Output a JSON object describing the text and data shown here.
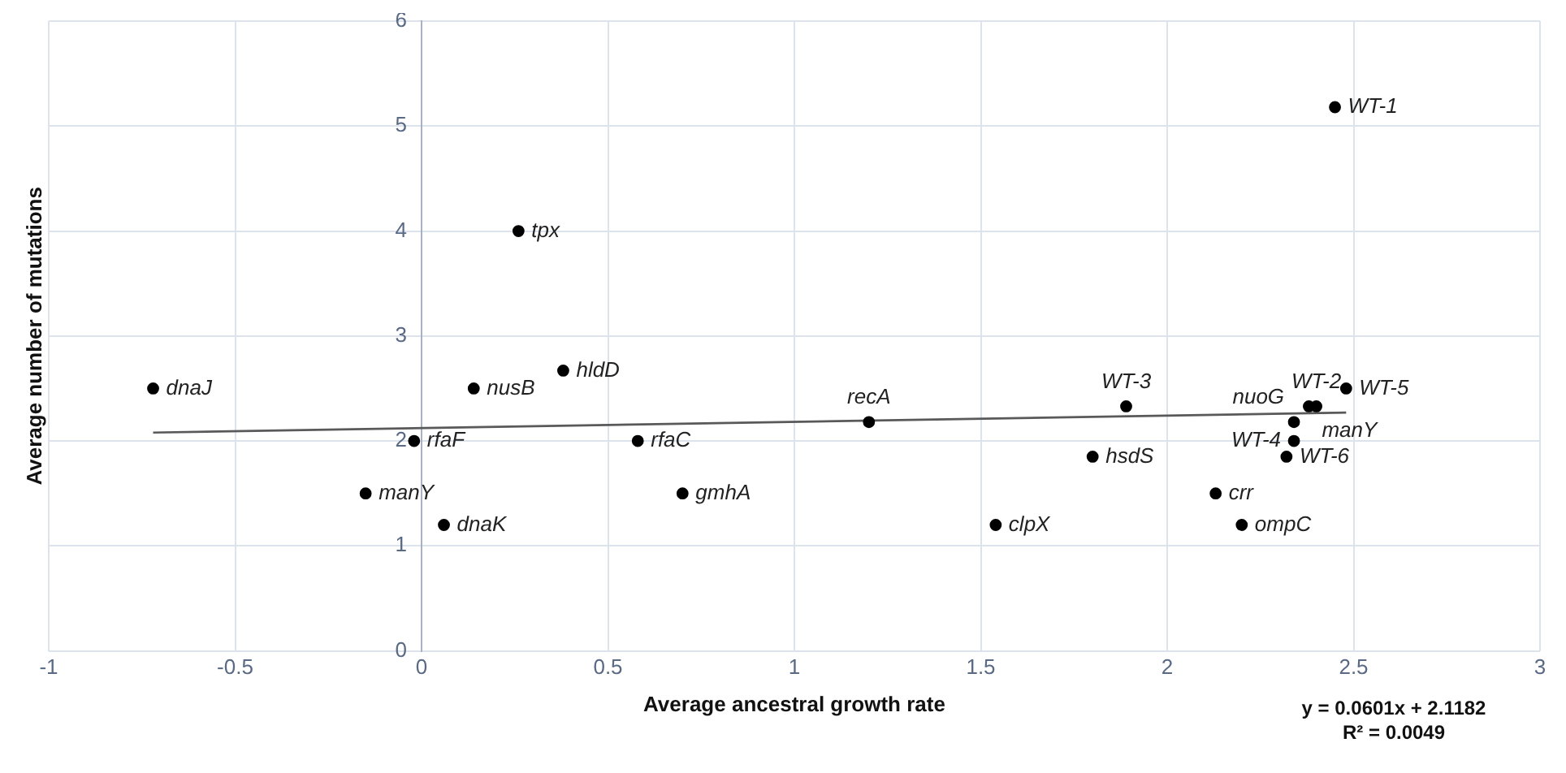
{
  "chart_data": {
    "type": "scatter",
    "xlabel": "Average ancestral growth rate",
    "ylabel": "Average number of mutations",
    "x": [
      -0.72,
      0.14,
      0.38,
      0.26,
      -0.02,
      0.58,
      -0.15,
      0.7,
      0.06,
      1.2,
      1.54,
      1.8,
      1.89,
      2.13,
      2.2,
      2.32,
      2.34,
      2.34,
      2.38,
      2.4,
      2.48,
      2.45
    ],
    "series": [
      {
        "color": "#000000",
        "values": [
          2.5,
          2.5,
          2.67,
          4,
          2,
          2,
          1.5,
          1.5,
          1.2,
          2.18,
          1.2,
          1.85,
          2.33,
          1.5,
          1.2,
          1.85,
          2,
          2.18,
          2.33,
          2.33,
          2.5,
          5.18
        ]
      },
      {
        "type": "line",
        "marker": "none",
        "color": "#595959",
        "x": [
          -0.72,
          2.48
        ],
        "values": [
          2.08,
          2.27
        ]
      }
    ],
    "annotations": [
      {
        "text": "dnaJ",
        "x": -0.72,
        "y": 2.5
      },
      {
        "text": "nusB",
        "x": 0.14,
        "y": 2.5
      },
      {
        "text": "hldD",
        "x": 0.38,
        "y": 2.67
      },
      {
        "text": "tpx",
        "x": 0.26,
        "y": 4
      },
      {
        "text": "rfaF",
        "x": -0.02,
        "y": 2
      },
      {
        "text": "rfaC",
        "x": 0.58,
        "y": 2
      },
      {
        "text": "manY",
        "x": -0.15,
        "y": 1.5
      },
      {
        "text": "gmhA",
        "x": 0.7,
        "y": 1.5
      },
      {
        "text": "dnaK",
        "x": 0.06,
        "y": 1.2
      },
      {
        "text": "recA",
        "x": 1.2,
        "y": 2.18
      },
      {
        "text": "clpX",
        "x": 1.54,
        "y": 1.2
      },
      {
        "text": "hsdS",
        "x": 1.8,
        "y": 1.85
      },
      {
        "text": "WT-3",
        "x": 1.89,
        "y": 2.33
      },
      {
        "text": "crr",
        "x": 2.13,
        "y": 1.5
      },
      {
        "text": "ompC",
        "x": 2.2,
        "y": 1.2
      },
      {
        "text": "WT-6",
        "x": 2.32,
        "y": 1.85
      },
      {
        "text": "WT-4",
        "x": 2.34,
        "y": 2
      },
      {
        "text": "nuoG",
        "x": 2.34,
        "y": 2.18
      },
      {
        "text": "manY",
        "x": 2.38,
        "y": 2.33
      },
      {
        "text": "WT-2",
        "x": 2.4,
        "y": 2.33
      },
      {
        "text": "WT-5",
        "x": 2.48,
        "y": 2.5
      },
      {
        "text": "WT-1",
        "x": 2.45,
        "y": 5.18
      },
      "y = 0.0601x + 2.1182",
      "R² = 0.0049"
    ],
    "xlim": [
      -1,
      3
    ],
    "xticks": [
      {
        "value": -1,
        "label": "-1"
      },
      -0.5,
      0,
      0.5,
      {
        "value": 1,
        "label": "1"
      },
      1.5,
      {
        "value": 2,
        "label": "2"
      },
      2.5,
      {
        "value": 3,
        "label": "3"
      }
    ],
    "ylim": [
      0,
      6
    ],
    "yticks": [
      0,
      1,
      2,
      3,
      4,
      5,
      6
    ],
    "grid": true,
    "legend": false,
    "marker": "circle",
    "line_style": "solid"
  }
}
